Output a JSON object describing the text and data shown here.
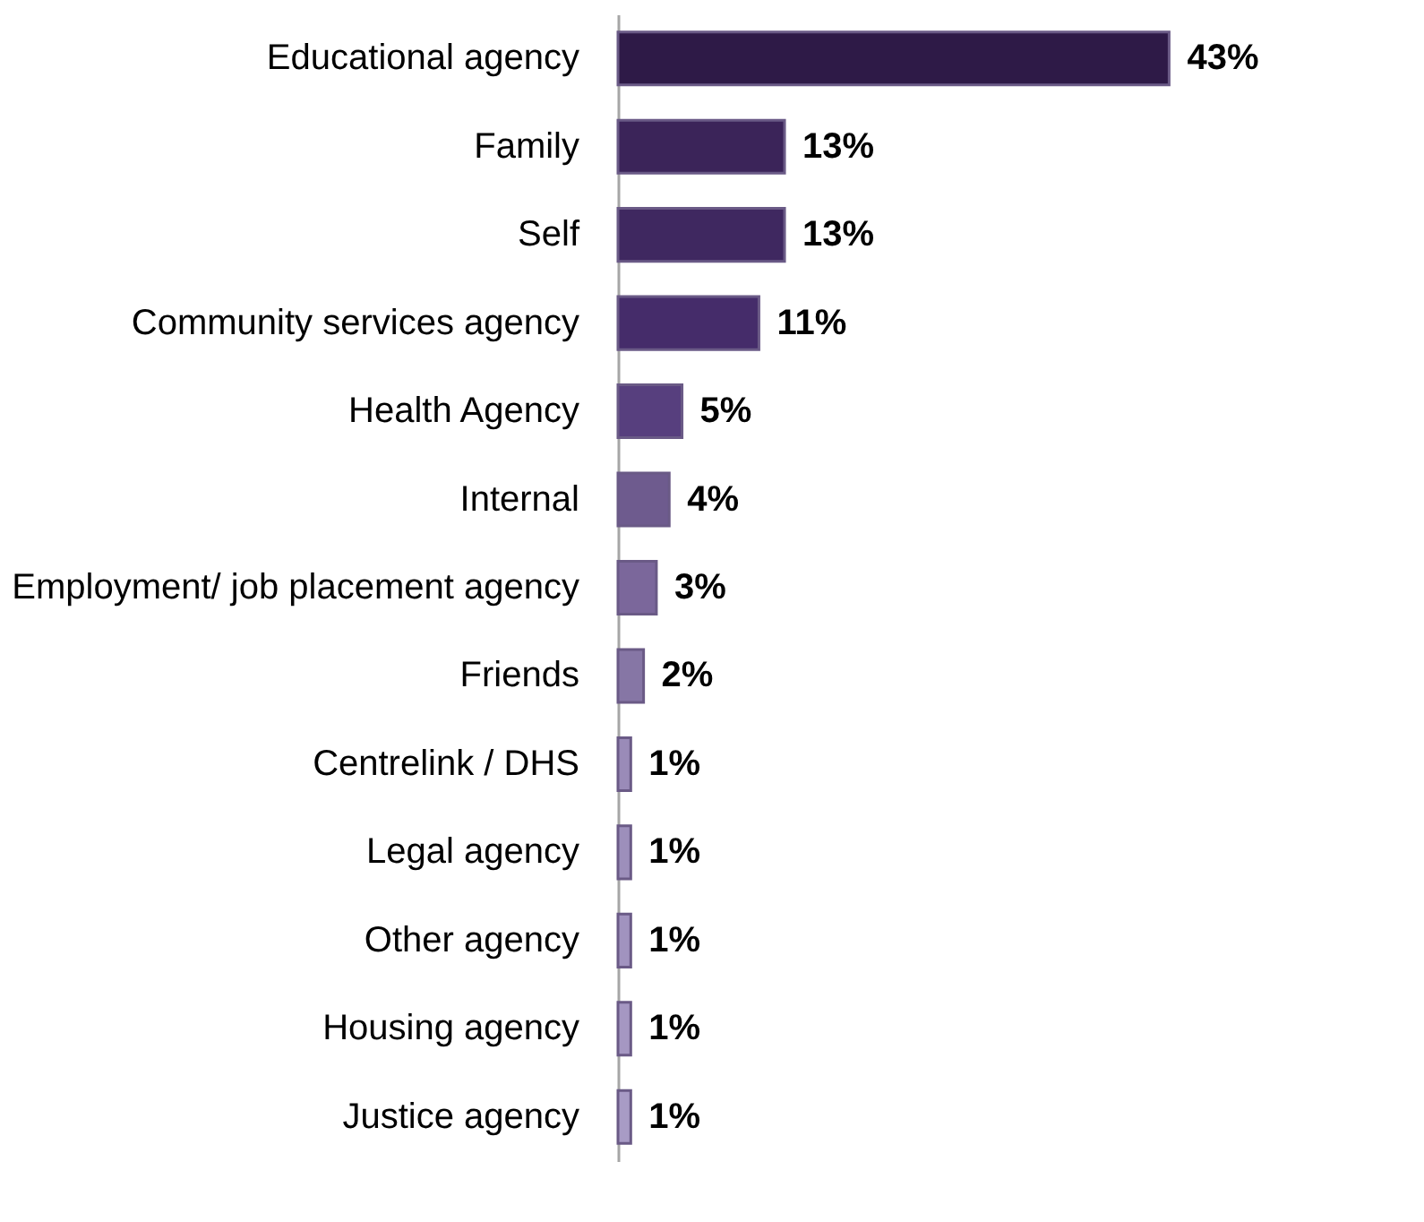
{
  "chart_data": {
    "type": "bar",
    "orientation": "horizontal",
    "categories": [
      "Educational agency",
      "Family",
      "Self",
      "Community services agency",
      "Health Agency",
      "Internal",
      "Employment/ job placement agency",
      "Friends",
      "Centrelink / DHS",
      "Legal agency",
      "Other agency",
      "Housing agency",
      "Justice agency"
    ],
    "values": [
      43,
      13,
      13,
      11,
      5,
      4,
      3,
      2,
      1,
      1,
      1,
      1,
      1
    ],
    "value_labels": [
      "43%",
      "13%",
      "13%",
      "11%",
      "5%",
      "4%",
      "3%",
      "2%",
      "1%",
      "1%",
      "1%",
      "1%",
      "1%"
    ],
    "colors": [
      "#2e1a47",
      "#3b2459",
      "#3f2860",
      "#452c6a",
      "#573f7e",
      "#6e5b8e",
      "#7b679b",
      "#8676a5",
      "#9a8bb8",
      "#9d8fbb",
      "#a193bf",
      "#a597c2",
      "#a89bc5"
    ],
    "grid": false
  }
}
